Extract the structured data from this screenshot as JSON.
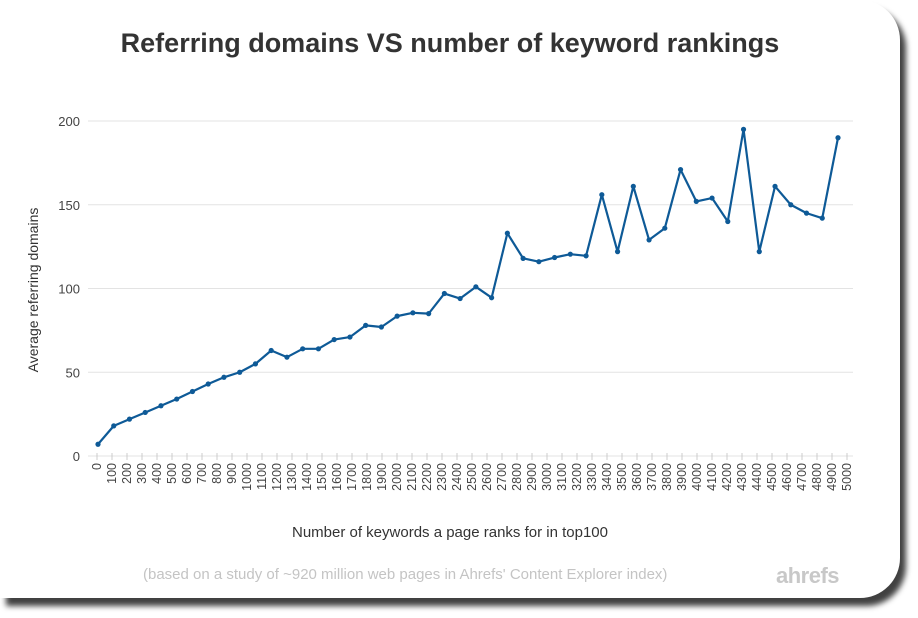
{
  "chart_data": {
    "type": "line",
    "title": "Referring domains VS number of keyword rankings",
    "xlabel": "Number of keywords a page ranks for in top100",
    "ylabel": "Average referring domains",
    "x_tick_labels": [
      "0",
      "100",
      "200",
      "300",
      "400",
      "500",
      "600",
      "700",
      "800",
      "900",
      "1000",
      "1100",
      "1200",
      "1300",
      "1400",
      "1500",
      "1600",
      "1700",
      "1800",
      "1900",
      "2000",
      "2100",
      "2200",
      "2300",
      "2400",
      "2500",
      "2600",
      "2700",
      "2800",
      "2900",
      "3000",
      "3100",
      "3200",
      "3300",
      "3400",
      "3500",
      "3600",
      "3700",
      "3800",
      "3900",
      "4000",
      "4100",
      "4200",
      "4300",
      "4400",
      "4500",
      "4600",
      "4700",
      "4800",
      "4900",
      "5000"
    ],
    "y_ticks": [
      0,
      50,
      100,
      150,
      200
    ],
    "ylim": [
      0,
      200
    ],
    "grid": "horizontal",
    "color": "#0e5a97",
    "values": [
      7,
      18,
      22,
      26,
      30,
      34,
      38.5,
      43,
      47,
      50,
      55,
      63,
      59,
      64,
      64,
      69.5,
      71,
      78,
      77,
      83.5,
      85.5,
      85,
      97,
      94,
      101,
      94.5,
      133,
      118,
      116,
      118.5,
      120.5,
      119.5,
      156,
      122,
      161,
      129,
      136,
      171,
      152,
      154,
      140,
      195,
      122,
      161,
      150,
      145,
      142,
      190
    ]
  },
  "footnote": "(based on a study of ~920 million web pages in Ahrefs' Content Explorer index)",
  "logo": "ahrefs"
}
